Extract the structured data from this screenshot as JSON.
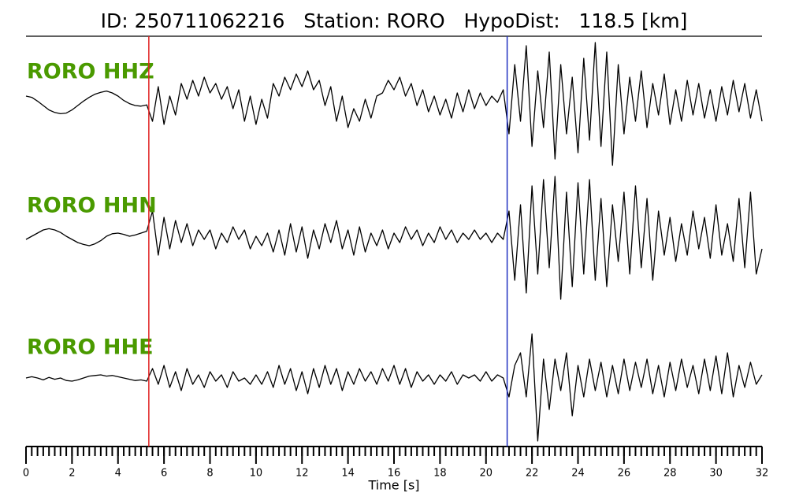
{
  "chart_data": {
    "type": "line",
    "title": "ID: 250711062216   Station: RORO   HypoDist:   118.5 [km]",
    "xlabel": "Time [s]",
    "xlim": [
      0,
      32
    ],
    "ylim": [
      -1,
      1
    ],
    "xticks": [
      0,
      2,
      4,
      6,
      8,
      10,
      12,
      14,
      16,
      18,
      20,
      22,
      24,
      26,
      28,
      30,
      32
    ],
    "xminorticks": [
      0,
      0.25,
      0.5,
      0.75,
      1,
      1.25,
      1.5,
      1.75,
      2,
      2.25,
      2.5,
      2.75,
      3,
      3.25,
      3.5,
      3.75,
      4,
      4.25,
      4.5,
      4.75,
      5,
      5.25,
      5.5,
      5.75,
      6,
      6.25,
      6.5,
      6.75,
      7,
      7.25,
      7.5,
      7.75,
      8,
      8.25,
      8.5,
      8.75,
      9,
      9.25,
      9.5,
      9.75,
      10,
      10.25,
      10.5,
      10.75,
      11,
      11.25,
      11.5,
      11.75,
      12,
      12.25,
      12.5,
      12.75,
      13,
      13.25,
      13.5,
      13.75,
      14,
      14.25,
      14.5,
      14.75,
      15,
      15.25,
      15.5,
      15.75,
      16,
      16.25,
      16.5,
      16.75,
      17,
      17.25,
      17.5,
      17.75,
      18,
      18.25,
      18.5,
      18.75,
      19,
      19.25,
      19.5,
      19.75,
      20,
      20.25,
      20.5,
      20.75,
      21,
      21.25,
      21.5,
      21.75,
      22,
      22.25,
      22.5,
      22.75,
      23,
      23.25,
      23.5,
      23.75,
      24,
      24.25,
      24.5,
      24.75,
      25,
      25.25,
      25.5,
      25.75,
      26,
      26.25,
      26.5,
      26.75,
      27,
      27.25,
      27.5,
      27.75,
      28,
      28.25,
      28.5,
      28.75,
      29,
      29.25,
      29.5,
      29.75,
      30,
      30.25,
      30.5,
      30.75,
      31,
      31.25,
      31.5,
      31.75,
      32
    ],
    "x": [
      0,
      0.25,
      0.5,
      0.75,
      1,
      1.25,
      1.5,
      1.75,
      2,
      2.25,
      2.5,
      2.75,
      3,
      3.25,
      3.5,
      3.75,
      4,
      4.25,
      4.5,
      4.75,
      5,
      5.25,
      5.5,
      5.75,
      6,
      6.25,
      6.5,
      6.75,
      7,
      7.25,
      7.5,
      7.75,
      8,
      8.25,
      8.5,
      8.75,
      9,
      9.25,
      9.5,
      9.75,
      10,
      10.25,
      10.5,
      10.75,
      11,
      11.25,
      11.5,
      11.75,
      12,
      12.25,
      12.5,
      12.75,
      13,
      13.25,
      13.5,
      13.75,
      14,
      14.25,
      14.5,
      14.75,
      15,
      15.25,
      15.5,
      15.75,
      16,
      16.25,
      16.5,
      16.75,
      17,
      17.25,
      17.5,
      17.75,
      18,
      18.25,
      18.5,
      18.75,
      19,
      19.25,
      19.5,
      19.75,
      20,
      20.25,
      20.5,
      20.75,
      21,
      21.25,
      21.5,
      21.75,
      22,
      22.25,
      22.5,
      22.75,
      23,
      23.25,
      23.5,
      23.75,
      24,
      24.25,
      24.5,
      24.75,
      25,
      25.25,
      25.5,
      25.75,
      26,
      26.25,
      26.5,
      26.75,
      27,
      27.25,
      27.5,
      27.75,
      28,
      28.25,
      28.5,
      28.75,
      29,
      29.25,
      29.5,
      29.75,
      30,
      30.25,
      30.5,
      30.75,
      31,
      31.25,
      31.5,
      31.75,
      32
    ],
    "picks": [
      {
        "x": 5.34,
        "color": "#e02020"
      },
      {
        "x": 20.92,
        "color": "#2030c0"
      }
    ],
    "label_color": "#4a9a00",
    "series": [
      {
        "name": "RORO HHZ",
        "color": "#000000",
        "values": [
          0.1,
          0.08,
          0.02,
          -0.05,
          -0.12,
          -0.16,
          -0.18,
          -0.17,
          -0.12,
          -0.05,
          0.02,
          0.08,
          0.13,
          0.16,
          0.18,
          0.15,
          0.1,
          0.03,
          -0.02,
          -0.05,
          -0.06,
          -0.04,
          -0.3,
          0.25,
          -0.35,
          0.1,
          -0.2,
          0.3,
          0.05,
          0.35,
          0.1,
          0.4,
          0.15,
          0.3,
          0.05,
          0.25,
          -0.1,
          0.2,
          -0.3,
          0.1,
          -0.35,
          0.05,
          -0.25,
          0.3,
          0.1,
          0.4,
          0.2,
          0.45,
          0.25,
          0.5,
          0.2,
          0.35,
          -0.05,
          0.25,
          -0.3,
          0.1,
          -0.4,
          -0.1,
          -0.3,
          0.05,
          -0.25,
          0.1,
          0.15,
          0.35,
          0.2,
          0.4,
          0.1,
          0.3,
          -0.05,
          0.2,
          -0.15,
          0.1,
          -0.2,
          0.05,
          -0.25,
          0.15,
          -0.15,
          0.2,
          -0.1,
          0.15,
          -0.05,
          0.1,
          0.0,
          0.2,
          -0.5,
          0.6,
          -0.3,
          0.9,
          -0.7,
          0.5,
          -0.4,
          0.8,
          -0.9,
          0.6,
          -0.5,
          0.4,
          -0.8,
          0.7,
          -0.6,
          0.95,
          -0.7,
          0.8,
          -1.0,
          0.6,
          -0.5,
          0.4,
          -0.3,
          0.5,
          -0.4,
          0.3,
          -0.2,
          0.45,
          -0.35,
          0.2,
          -0.3,
          0.35,
          -0.2,
          0.3,
          -0.25,
          0.2,
          -0.3,
          0.25,
          -0.2,
          0.35,
          -0.15,
          0.3,
          -0.25,
          0.2,
          -0.3
        ]
      },
      {
        "name": "RORO HHN",
        "color": "#000000",
        "values": [
          -0.05,
          0.0,
          0.05,
          0.1,
          0.12,
          0.1,
          0.06,
          0.0,
          -0.05,
          -0.1,
          -0.13,
          -0.15,
          -0.12,
          -0.07,
          0.0,
          0.04,
          0.05,
          0.03,
          0.0,
          0.02,
          0.05,
          0.08,
          0.4,
          -0.3,
          0.3,
          -0.2,
          0.25,
          -0.1,
          0.2,
          -0.15,
          0.1,
          -0.05,
          0.1,
          -0.2,
          0.05,
          -0.1,
          0.15,
          -0.05,
          0.1,
          -0.2,
          0.0,
          -0.15,
          0.05,
          -0.25,
          0.1,
          -0.3,
          0.2,
          -0.25,
          0.15,
          -0.35,
          0.1,
          -0.2,
          0.2,
          -0.1,
          0.25,
          -0.2,
          0.1,
          -0.3,
          0.15,
          -0.25,
          0.05,
          -0.15,
          0.1,
          -0.2,
          0.05,
          -0.1,
          0.15,
          -0.05,
          0.1,
          -0.15,
          0.05,
          -0.1,
          0.15,
          -0.05,
          0.1,
          -0.1,
          0.05,
          -0.05,
          0.1,
          -0.05,
          0.05,
          -0.1,
          0.05,
          -0.05,
          0.4,
          -0.7,
          0.5,
          -0.9,
          0.8,
          -0.6,
          0.9,
          -0.5,
          0.95,
          -1.0,
          0.7,
          -0.8,
          0.85,
          -0.6,
          0.9,
          -0.7,
          0.6,
          -0.8,
          0.5,
          -0.4,
          0.7,
          -0.6,
          0.8,
          -0.5,
          0.6,
          -0.7,
          0.4,
          -0.3,
          0.3,
          -0.4,
          0.2,
          -0.3,
          0.4,
          -0.2,
          0.3,
          -0.35,
          0.5,
          -0.3,
          0.2,
          -0.4,
          0.6,
          -0.5,
          0.7,
          -0.6,
          -0.2
        ]
      },
      {
        "name": "RORO HHE",
        "color": "#000000",
        "values": [
          0.0,
          0.02,
          0.0,
          -0.03,
          0.01,
          -0.02,
          0.0,
          -0.04,
          -0.05,
          -0.03,
          0.0,
          0.03,
          0.04,
          0.05,
          0.03,
          0.04,
          0.02,
          0.0,
          -0.02,
          -0.04,
          -0.03,
          -0.05,
          0.15,
          -0.1,
          0.2,
          -0.15,
          0.1,
          -0.2,
          0.15,
          -0.1,
          0.05,
          -0.15,
          0.1,
          -0.05,
          0.05,
          -0.15,
          0.1,
          -0.05,
          0.0,
          -0.1,
          0.05,
          -0.1,
          0.1,
          -0.15,
          0.2,
          -0.1,
          0.15,
          -0.2,
          0.1,
          -0.25,
          0.15,
          -0.15,
          0.2,
          -0.1,
          0.15,
          -0.2,
          0.1,
          -0.1,
          0.15,
          -0.05,
          0.1,
          -0.1,
          0.15,
          -0.05,
          0.2,
          -0.1,
          0.15,
          -0.15,
          0.1,
          -0.05,
          0.05,
          -0.1,
          0.05,
          -0.05,
          0.1,
          -0.1,
          0.05,
          0.0,
          0.05,
          -0.05,
          0.1,
          -0.05,
          0.05,
          0.0,
          -0.3,
          0.2,
          0.4,
          -0.3,
          0.7,
          -1.0,
          0.3,
          -0.5,
          0.3,
          -0.2,
          0.4,
          -0.6,
          0.2,
          -0.3,
          0.3,
          -0.2,
          0.25,
          -0.3,
          0.2,
          -0.25,
          0.3,
          -0.2,
          0.25,
          -0.15,
          0.3,
          -0.25,
          0.2,
          -0.3,
          0.25,
          -0.2,
          0.3,
          -0.15,
          0.2,
          -0.25,
          0.3,
          -0.2,
          0.35,
          -0.25,
          0.4,
          -0.3,
          0.2,
          -0.15,
          0.25,
          -0.1,
          0.05
        ]
      }
    ]
  }
}
